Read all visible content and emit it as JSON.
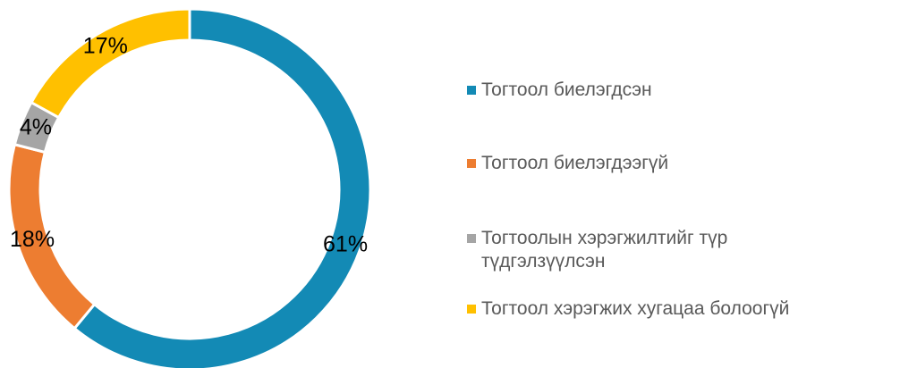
{
  "chart_data": {
    "type": "donut",
    "categories": [
      "Тогтоол биелэгдсэн",
      "Тогтоол биелэгдээгүй",
      "Тогтоолын хэрэгжилтийг түр түдгэлзүүлсэн",
      "Тогтоол хэрэгжих хугацаа болоогүй"
    ],
    "values": [
      61,
      18,
      4,
      17
    ],
    "value_labels": [
      "61%",
      "18%",
      "4%",
      "17%"
    ],
    "colors": [
      "#138ab5",
      "#ed7d31",
      "#a5a5a5",
      "#ffc000"
    ],
    "legend": "right"
  }
}
